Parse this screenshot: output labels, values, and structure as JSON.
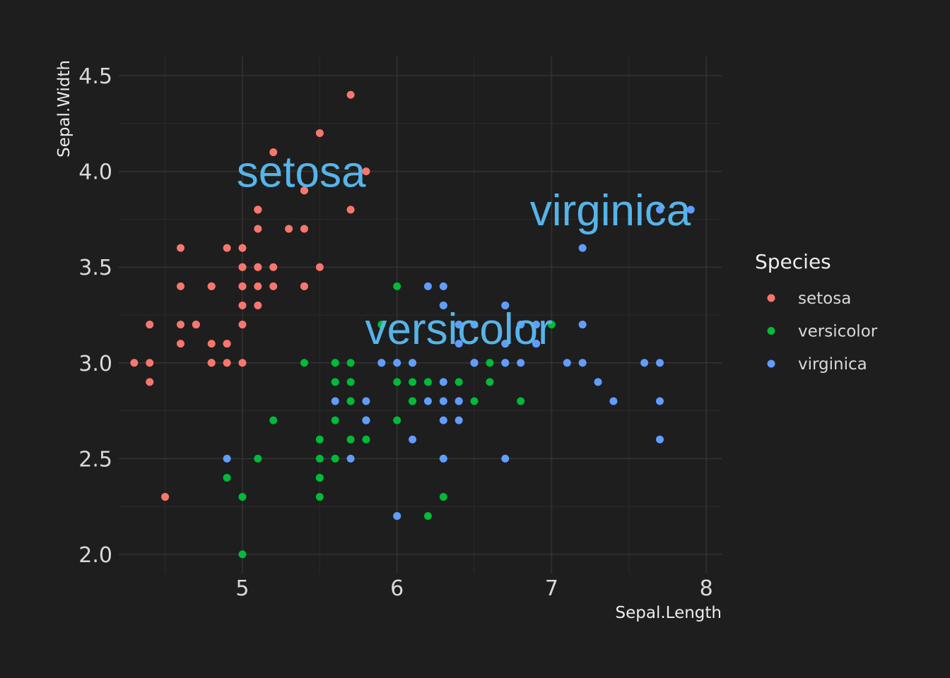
{
  "chart_data": {
    "type": "scatter",
    "title": "",
    "xlabel": "Sepal.Length",
    "ylabel": "Sepal.Width",
    "xlim": [
      4.2,
      8.1
    ],
    "ylim": [
      1.9,
      4.6
    ],
    "x_ticks": [
      5,
      6,
      7,
      8
    ],
    "x_tick_labels": [
      "5",
      "6",
      "7",
      "8"
    ],
    "y_ticks": [
      2.0,
      2.5,
      3.0,
      3.5,
      4.0,
      4.5
    ],
    "y_tick_labels": [
      "2.0",
      "2.5",
      "3.0",
      "3.5",
      "4.0",
      "4.5"
    ],
    "grid": true,
    "legend": {
      "title": "Species",
      "position": "right",
      "entries": [
        "setosa",
        "versicolor",
        "virginica"
      ]
    },
    "annotations": [
      {
        "text": "setosa",
        "x": 5.38,
        "y": 4.0,
        "color": "#56B4E9"
      },
      {
        "text": "versicolor",
        "x": 6.4,
        "y": 3.18,
        "color": "#56B4E9"
      },
      {
        "text": "virginica",
        "x": 7.38,
        "y": 3.8,
        "color": "#56B4E9"
      }
    ],
    "series": [
      {
        "name": "setosa",
        "color": "#F8766D",
        "points": [
          [
            5.1,
            3.5
          ],
          [
            4.9,
            3.0
          ],
          [
            4.7,
            3.2
          ],
          [
            4.6,
            3.1
          ],
          [
            5.0,
            3.6
          ],
          [
            5.4,
            3.9
          ],
          [
            4.6,
            3.4
          ],
          [
            5.0,
            3.4
          ],
          [
            4.4,
            2.9
          ],
          [
            4.9,
            3.1
          ],
          [
            5.4,
            3.7
          ],
          [
            4.8,
            3.4
          ],
          [
            4.8,
            3.0
          ],
          [
            4.3,
            3.0
          ],
          [
            5.8,
            4.0
          ],
          [
            5.7,
            4.4
          ],
          [
            5.4,
            3.9
          ],
          [
            5.1,
            3.5
          ],
          [
            5.7,
            3.8
          ],
          [
            5.1,
            3.8
          ],
          [
            5.4,
            3.4
          ],
          [
            5.1,
            3.7
          ],
          [
            4.6,
            3.6
          ],
          [
            5.1,
            3.3
          ],
          [
            4.8,
            3.4
          ],
          [
            5.0,
            3.0
          ],
          [
            5.0,
            3.4
          ],
          [
            5.2,
            3.5
          ],
          [
            5.2,
            3.4
          ],
          [
            4.7,
            3.2
          ],
          [
            4.8,
            3.1
          ],
          [
            5.4,
            3.4
          ],
          [
            5.2,
            4.1
          ],
          [
            5.5,
            4.2
          ],
          [
            4.9,
            3.1
          ],
          [
            5.0,
            3.2
          ],
          [
            5.5,
            3.5
          ],
          [
            4.9,
            3.6
          ],
          [
            4.4,
            3.0
          ],
          [
            5.1,
            3.4
          ],
          [
            5.0,
            3.5
          ],
          [
            4.5,
            2.3
          ],
          [
            4.4,
            3.2
          ],
          [
            5.0,
            3.5
          ],
          [
            5.1,
            3.8
          ],
          [
            4.8,
            3.0
          ],
          [
            5.1,
            3.8
          ],
          [
            4.6,
            3.2
          ],
          [
            5.3,
            3.7
          ],
          [
            5.0,
            3.3
          ]
        ]
      },
      {
        "name": "versicolor",
        "color": "#00BA38",
        "points": [
          [
            7.0,
            3.2
          ],
          [
            6.4,
            3.2
          ],
          [
            6.9,
            3.1
          ],
          [
            5.5,
            2.3
          ],
          [
            6.5,
            2.8
          ],
          [
            5.7,
            2.8
          ],
          [
            6.3,
            3.3
          ],
          [
            4.9,
            2.4
          ],
          [
            6.6,
            2.9
          ],
          [
            5.2,
            2.7
          ],
          [
            5.0,
            2.0
          ],
          [
            5.9,
            3.0
          ],
          [
            6.0,
            2.2
          ],
          [
            6.1,
            2.9
          ],
          [
            5.6,
            2.9
          ],
          [
            6.7,
            3.1
          ],
          [
            5.6,
            3.0
          ],
          [
            5.8,
            2.7
          ],
          [
            6.2,
            2.2
          ],
          [
            5.6,
            2.5
          ],
          [
            5.9,
            3.2
          ],
          [
            6.1,
            2.8
          ],
          [
            6.3,
            2.5
          ],
          [
            6.1,
            2.8
          ],
          [
            6.4,
            2.9
          ],
          [
            6.6,
            3.0
          ],
          [
            6.8,
            2.8
          ],
          [
            6.7,
            3.0
          ],
          [
            6.0,
            2.9
          ],
          [
            5.7,
            2.6
          ],
          [
            5.5,
            2.4
          ],
          [
            5.5,
            2.4
          ],
          [
            5.8,
            2.7
          ],
          [
            6.0,
            2.7
          ],
          [
            5.4,
            3.0
          ],
          [
            6.0,
            3.4
          ],
          [
            6.7,
            3.1
          ],
          [
            6.3,
            2.3
          ],
          [
            5.6,
            3.0
          ],
          [
            5.5,
            2.5
          ],
          [
            5.5,
            2.6
          ],
          [
            6.1,
            3.0
          ],
          [
            5.8,
            2.6
          ],
          [
            5.0,
            2.3
          ],
          [
            5.6,
            2.7
          ],
          [
            5.7,
            3.0
          ],
          [
            5.7,
            2.9
          ],
          [
            6.2,
            2.9
          ],
          [
            5.1,
            2.5
          ],
          [
            5.7,
            2.8
          ]
        ]
      },
      {
        "name": "virginica",
        "color": "#619CFF",
        "points": [
          [
            6.3,
            3.3
          ],
          [
            5.8,
            2.7
          ],
          [
            7.1,
            3.0
          ],
          [
            6.3,
            2.9
          ],
          [
            6.5,
            3.0
          ],
          [
            7.6,
            3.0
          ],
          [
            4.9,
            2.5
          ],
          [
            7.3,
            2.9
          ],
          [
            6.7,
            2.5
          ],
          [
            7.2,
            3.6
          ],
          [
            6.5,
            3.2
          ],
          [
            6.4,
            2.7
          ],
          [
            6.8,
            3.0
          ],
          [
            5.7,
            2.5
          ],
          [
            5.8,
            2.8
          ],
          [
            6.4,
            3.2
          ],
          [
            6.5,
            3.0
          ],
          [
            7.7,
            3.8
          ],
          [
            7.7,
            2.6
          ],
          [
            6.0,
            2.2
          ],
          [
            6.9,
            3.2
          ],
          [
            5.6,
            2.8
          ],
          [
            7.7,
            2.8
          ],
          [
            6.3,
            2.7
          ],
          [
            6.7,
            3.3
          ],
          [
            7.2,
            3.2
          ],
          [
            6.2,
            2.8
          ],
          [
            6.1,
            3.0
          ],
          [
            6.4,
            2.8
          ],
          [
            7.2,
            3.0
          ],
          [
            7.4,
            2.8
          ],
          [
            7.9,
            3.8
          ],
          [
            6.4,
            2.8
          ],
          [
            6.3,
            2.8
          ],
          [
            6.1,
            2.6
          ],
          [
            7.7,
            3.0
          ],
          [
            6.3,
            3.4
          ],
          [
            6.4,
            3.1
          ],
          [
            6.0,
            3.0
          ],
          [
            6.9,
            3.1
          ],
          [
            6.7,
            3.1
          ],
          [
            6.9,
            3.1
          ],
          [
            5.8,
            2.7
          ],
          [
            6.8,
            3.2
          ],
          [
            6.7,
            3.3
          ],
          [
            6.7,
            3.0
          ],
          [
            6.3,
            2.5
          ],
          [
            6.5,
            3.0
          ],
          [
            6.2,
            3.4
          ],
          [
            5.9,
            3.0
          ]
        ]
      }
    ]
  }
}
